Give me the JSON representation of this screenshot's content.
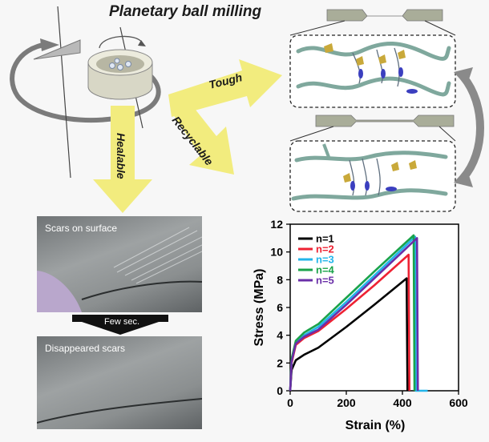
{
  "title": "Planetary ball milling",
  "arrows": {
    "tough": "Tough",
    "recyclable": "Recyclable",
    "healable": "Healable"
  },
  "photos": {
    "top_label": "Scars on surface",
    "bottom_label": "Disappeared scars",
    "transition": "Few sec."
  },
  "colors": {
    "arrow_yellow": "#f2ec7e",
    "chain_teal": "#7fa89d",
    "crosslink_gold": "#c9a93a",
    "crosslink_blue": "#3b3fbf",
    "curved_arrow": "#8a8a8a"
  },
  "chart_data": {
    "type": "line",
    "xlabel": "Strain (%)",
    "ylabel": "Stress (MPa)",
    "xlim": [
      0,
      600
    ],
    "ylim": [
      0,
      12
    ],
    "xticks": [
      0,
      200,
      400,
      600
    ],
    "yticks": [
      0,
      2,
      4,
      6,
      8,
      10,
      12
    ],
    "legend_position": "top-left",
    "series": [
      {
        "name": "n=1",
        "color": "#000000",
        "x": [
          0,
          5,
          20,
          50,
          100,
          200,
          300,
          415,
          418
        ],
        "y": [
          0,
          1.5,
          2.2,
          2.6,
          3.1,
          4.6,
          6.2,
          8.1,
          0
        ]
      },
      {
        "name": "n=2",
        "color": "#ee2233",
        "x": [
          0,
          5,
          20,
          50,
          100,
          200,
          300,
          422,
          425
        ],
        "y": [
          0,
          2.0,
          3.3,
          3.8,
          4.3,
          5.9,
          7.6,
          9.8,
          0
        ]
      },
      {
        "name": "n=3",
        "color": "#22b5ea",
        "x": [
          0,
          5,
          20,
          50,
          100,
          200,
          300,
          445,
          448,
          490
        ],
        "y": [
          0,
          2.2,
          3.5,
          4.0,
          4.6,
          6.4,
          8.3,
          11.1,
          0,
          0
        ]
      },
      {
        "name": "n=4",
        "color": "#1aa34a",
        "x": [
          0,
          5,
          20,
          50,
          100,
          200,
          300,
          440,
          443
        ],
        "y": [
          0,
          2.3,
          3.6,
          4.2,
          4.8,
          6.7,
          8.6,
          11.2,
          0
        ]
      },
      {
        "name": "n=5",
        "color": "#6a2fa8",
        "x": [
          0,
          5,
          20,
          50,
          100,
          200,
          300,
          452,
          455
        ],
        "y": [
          0,
          2.1,
          3.4,
          3.9,
          4.4,
          6.2,
          8.1,
          11.0,
          0
        ]
      }
    ]
  }
}
